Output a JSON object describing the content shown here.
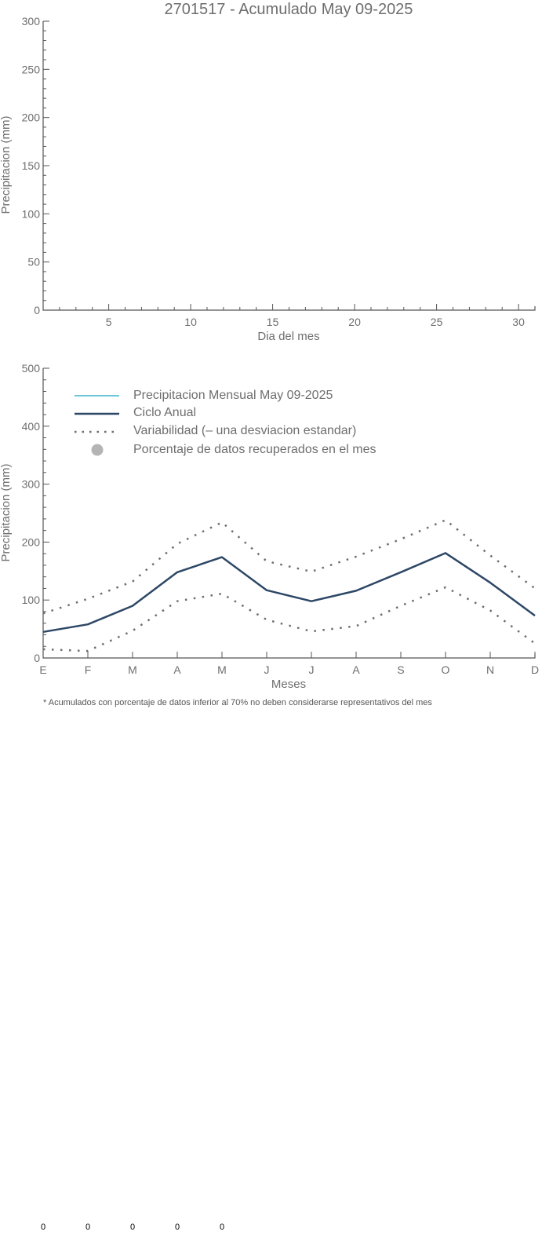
{
  "chart_data": [
    {
      "type": "line",
      "title": "2701517 - Acumulado May 09-2025",
      "xlabel": "Dia del mes",
      "ylabel": "Precipitacion (mm)",
      "xlim": [
        1,
        31
      ],
      "ylim": [
        0,
        300
      ],
      "x_ticks": [
        5,
        10,
        15,
        20,
        25,
        30
      ],
      "y_ticks": [
        0,
        50,
        100,
        150,
        200,
        250,
        300
      ],
      "series": []
    },
    {
      "type": "line",
      "xlabel": "Meses",
      "ylabel": "Precipitacion (mm)",
      "ylim": [
        0,
        500
      ],
      "y_ticks": [
        0,
        100,
        200,
        300,
        400,
        500
      ],
      "categories": [
        "E",
        "F",
        "M",
        "A",
        "M",
        "J",
        "J",
        "A",
        "S",
        "O",
        "N",
        "D"
      ],
      "legend": {
        "placement": "top-left",
        "items": [
          {
            "label": "Precipitacion Mensual May 09-2025",
            "style": "line",
            "color": "#3bb6cc"
          },
          {
            "label": "Ciclo Anual",
            "style": "line",
            "color": "#2d4766"
          },
          {
            "label": "Variabilidad (– una desviacion estandar)",
            "style": "dotted",
            "color": "#6e6e6e"
          },
          {
            "label": "Porcentaje de datos recuperados en el mes",
            "style": "dot",
            "color": "#b4b4b4"
          }
        ]
      },
      "series": [
        {
          "name": "Ciclo Anual",
          "values": [
            45,
            58,
            90,
            148,
            174,
            117,
            98,
            116,
            148,
            181,
            130,
            73
          ]
        },
        {
          "name": "Variabilidad upper",
          "values": [
            77,
            102,
            132,
            197,
            234,
            167,
            149,
            175,
            205,
            238,
            177,
            120
          ]
        },
        {
          "name": "Variabilidad lower",
          "values": [
            15,
            12,
            47,
            98,
            111,
            66,
            46,
            55,
            90,
            122,
            82,
            25
          ]
        }
      ],
      "footnote": "* Acumulados con porcentaje de datos inferior al 70% no deben considerarse representativos del mes"
    }
  ],
  "percent_row": [
    "0",
    "0",
    "0",
    "0",
    "0"
  ]
}
